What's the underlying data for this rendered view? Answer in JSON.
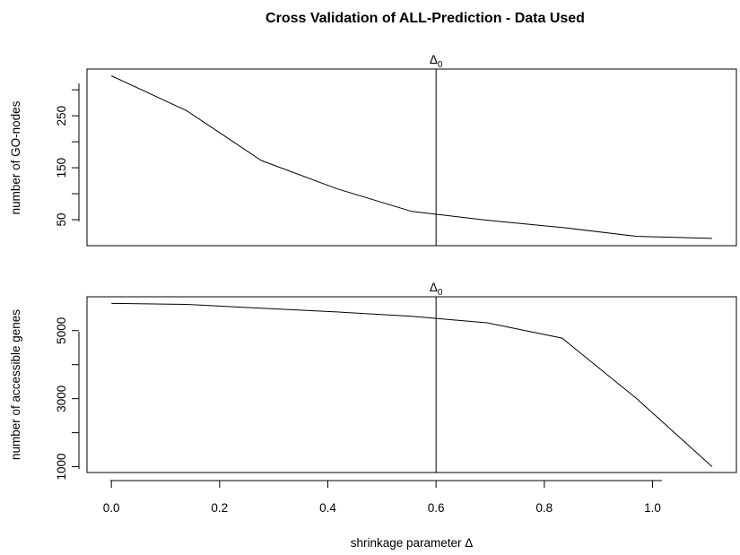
{
  "figure": {
    "title": "Cross Validation of ALL-Prediction - Data Used",
    "xlabel": "shrinkage parameter Δ"
  },
  "chart_data": [
    {
      "type": "line",
      "ylabel": "number of GO-nodes",
      "x": [
        0.0,
        0.139,
        0.277,
        0.416,
        0.555,
        0.694,
        0.833,
        0.971,
        1.11
      ],
      "values": [
        327,
        260,
        164,
        110,
        66,
        49,
        35,
        18,
        14
      ],
      "xlim": [
        -0.045,
        1.155
      ],
      "ylim": [
        0,
        340
      ],
      "y_ticks": [
        50,
        150,
        250
      ],
      "y_minor_ticks": [
        100,
        200,
        300
      ],
      "vline": {
        "x": 0.6,
        "label": "Δ0",
        "label_base": "Δ",
        "label_sub": "0"
      }
    },
    {
      "type": "line",
      "ylabel": "number of accessible genes",
      "x": [
        0.0,
        0.139,
        0.277,
        0.416,
        0.555,
        0.694,
        0.833,
        0.971,
        1.11
      ],
      "values": [
        5800,
        5770,
        5660,
        5550,
        5420,
        5230,
        4780,
        3000,
        1000
      ],
      "xlim": [
        -0.045,
        1.155
      ],
      "ylim": [
        830,
        5995
      ],
      "y_ticks": [
        1000,
        3000,
        5000
      ],
      "y_minor_ticks": [
        2000,
        4000
      ],
      "x_ticks": [
        "0.0",
        "0.2",
        "0.4",
        "0.6",
        "0.8",
        "1.0"
      ],
      "x_tick_values": [
        0.0,
        0.2,
        0.4,
        0.6,
        0.8,
        1.0
      ],
      "vline": {
        "x": 0.6,
        "label": "Δ0",
        "label_base": "Δ",
        "label_sub": "0"
      }
    }
  ]
}
